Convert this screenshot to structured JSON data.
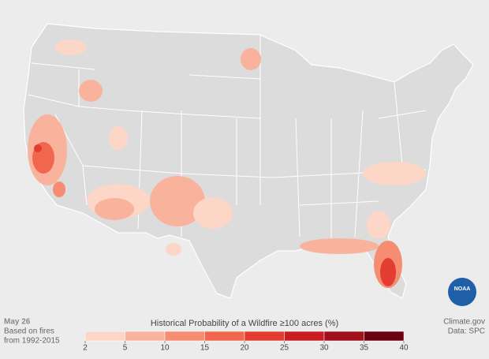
{
  "map": {
    "date": "May 26",
    "note": [
      "Based on fires",
      "from 1992-2015"
    ],
    "credit": "Climate.gov",
    "source": "Data: SPC",
    "logo": "NOAA"
  },
  "legend": {
    "title": "Historical Probability of a Wildfire ≥100 acres (%)",
    "ticks": [
      2,
      5,
      10,
      15,
      20,
      25,
      30,
      35,
      40
    ],
    "colors": [
      "#fcd6c6",
      "#f9b39d",
      "#f68d72",
      "#f1664f",
      "#e23d30",
      "#c91d21",
      "#a0111b",
      "#6a0010"
    ]
  }
}
